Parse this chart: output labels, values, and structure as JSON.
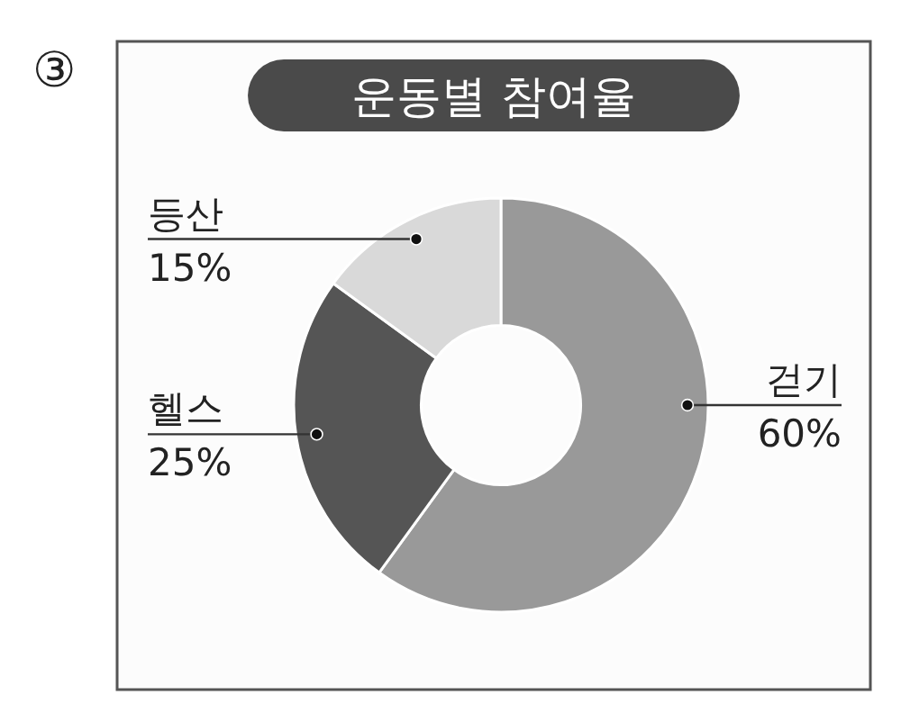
{
  "chart_data": {
    "type": "donut",
    "title": "운동별 참여율",
    "categories": [
      "걷기",
      "헬스",
      "등산"
    ],
    "values": [
      60,
      25,
      15
    ],
    "colors": [
      "#999999",
      "#555555",
      "#d9d9d9"
    ],
    "value_labels": [
      "60%",
      "25%",
      "15%"
    ],
    "annotations": [
      "③"
    ]
  }
}
